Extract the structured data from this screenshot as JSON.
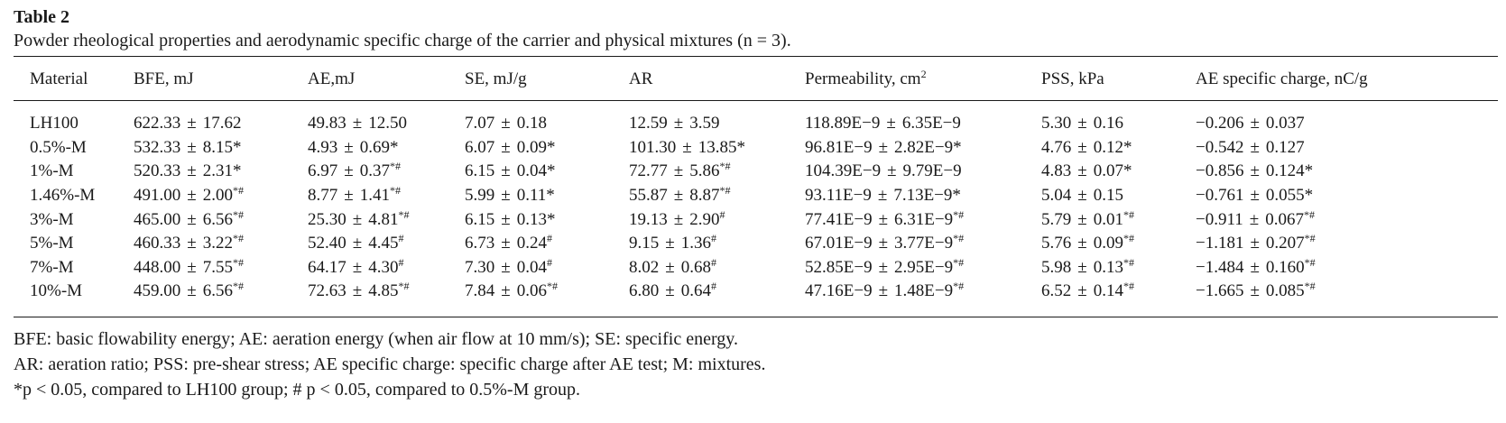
{
  "table_label": "Table 2",
  "caption": "Powder rheological properties and aerodynamic specific charge of the carrier and physical mixtures (n = 3).",
  "headers": [
    {
      "text": "Material",
      "sup": ""
    },
    {
      "text": "BFE, mJ",
      "sup": ""
    },
    {
      "text": "AE,mJ",
      "sup": ""
    },
    {
      "text": "SE, mJ/g",
      "sup": ""
    },
    {
      "text": "AR",
      "sup": ""
    },
    {
      "text": "Permeability, cm",
      "sup": "2"
    },
    {
      "text": "PSS, kPa",
      "sup": ""
    },
    {
      "text": "AE specific charge, nC/g",
      "sup": ""
    }
  ],
  "rows": [
    {
      "material": "LH100",
      "cells": [
        {
          "mean": "622.33",
          "sd": "17.62",
          "sig": ""
        },
        {
          "mean": "49.83",
          "sd": "12.50",
          "sig": ""
        },
        {
          "mean": "7.07",
          "sd": "0.18",
          "sig": ""
        },
        {
          "mean": "12.59",
          "sd": "3.59",
          "sig": ""
        },
        {
          "mean": "118.89E−9",
          "sd": "6.35E−9",
          "sig": ""
        },
        {
          "mean": "5.30",
          "sd": "0.16",
          "sig": ""
        },
        {
          "mean": "−0.206",
          "sd": "0.037",
          "sig": ""
        }
      ]
    },
    {
      "material": "0.5%-M",
      "cells": [
        {
          "mean": "532.33",
          "sd": "8.15*",
          "sig": ""
        },
        {
          "mean": "4.93",
          "sd": "0.69*",
          "sig": ""
        },
        {
          "mean": "6.07",
          "sd": "0.09*",
          "sig": ""
        },
        {
          "mean": "101.30",
          "sd": "13.85*",
          "sig": ""
        },
        {
          "mean": "96.81E−9",
          "sd": "2.82E−9*",
          "sig": ""
        },
        {
          "mean": "4.76",
          "sd": "0.12*",
          "sig": ""
        },
        {
          "mean": "−0.542",
          "sd": "0.127",
          "sig": ""
        }
      ]
    },
    {
      "material": "1%-M",
      "cells": [
        {
          "mean": "520.33",
          "sd": "2.31*",
          "sig": ""
        },
        {
          "mean": "6.97",
          "sd": "0.37",
          "sig": "*#"
        },
        {
          "mean": "6.15",
          "sd": "0.04*",
          "sig": ""
        },
        {
          "mean": "72.77",
          "sd": "5.86",
          "sig": "*#"
        },
        {
          "mean": "104.39E−9",
          "sd": "9.79E−9",
          "sig": ""
        },
        {
          "mean": "4.83",
          "sd": "0.07*",
          "sig": ""
        },
        {
          "mean": "−0.856",
          "sd": "0.124*",
          "sig": ""
        }
      ]
    },
    {
      "material": "1.46%-M",
      "cells": [
        {
          "mean": "491.00",
          "sd": "2.00",
          "sig": "*#"
        },
        {
          "mean": "8.77",
          "sd": "1.41",
          "sig": "*#"
        },
        {
          "mean": "5.99",
          "sd": "0.11*",
          "sig": ""
        },
        {
          "mean": "55.87",
          "sd": "8.87",
          "sig": "*#"
        },
        {
          "mean": "93.11E−9",
          "sd": "7.13E−9*",
          "sig": ""
        },
        {
          "mean": "5.04",
          "sd": "0.15",
          "sig": ""
        },
        {
          "mean": "−0.761",
          "sd": "0.055*",
          "sig": ""
        }
      ]
    },
    {
      "material": "3%-M",
      "cells": [
        {
          "mean": "465.00",
          "sd": "6.56",
          "sig": "*#"
        },
        {
          "mean": "25.30",
          "sd": "4.81",
          "sig": "*#"
        },
        {
          "mean": "6.15",
          "sd": "0.13*",
          "sig": ""
        },
        {
          "mean": "19.13",
          "sd": "2.90",
          "sig": "#"
        },
        {
          "mean": "77.41E−9",
          "sd": "6.31E−9",
          "sig": "*#"
        },
        {
          "mean": "5.79",
          "sd": "0.01",
          "sig": "*#"
        },
        {
          "mean": "−0.911",
          "sd": "0.067",
          "sig": "*#"
        }
      ]
    },
    {
      "material": "5%-M",
      "cells": [
        {
          "mean": "460.33",
          "sd": "3.22",
          "sig": "*#"
        },
        {
          "mean": "52.40",
          "sd": "4.45",
          "sig": "#"
        },
        {
          "mean": "6.73",
          "sd": "0.24",
          "sig": "#"
        },
        {
          "mean": "9.15",
          "sd": "1.36",
          "sig": "#"
        },
        {
          "mean": "67.01E−9",
          "sd": "3.77E−9",
          "sig": "*#"
        },
        {
          "mean": "5.76",
          "sd": "0.09",
          "sig": "*#"
        },
        {
          "mean": "−1.181",
          "sd": "0.207",
          "sig": "*#"
        }
      ]
    },
    {
      "material": "7%-M",
      "cells": [
        {
          "mean": "448.00",
          "sd": "7.55",
          "sig": "*#"
        },
        {
          "mean": "64.17",
          "sd": "4.30",
          "sig": "#"
        },
        {
          "mean": "7.30",
          "sd": "0.04",
          "sig": "#"
        },
        {
          "mean": "8.02",
          "sd": "0.68",
          "sig": "#"
        },
        {
          "mean": "52.85E−9",
          "sd": "2.95E−9",
          "sig": "*#"
        },
        {
          "mean": "5.98",
          "sd": "0.13",
          "sig": "*#"
        },
        {
          "mean": "−1.484",
          "sd": "0.160",
          "sig": "*#"
        }
      ]
    },
    {
      "material": "10%-M",
      "cells": [
        {
          "mean": "459.00",
          "sd": "6.56",
          "sig": "*#"
        },
        {
          "mean": "72.63",
          "sd": "4.85",
          "sig": "*#"
        },
        {
          "mean": "7.84",
          "sd": "0.06",
          "sig": "*#"
        },
        {
          "mean": "6.80",
          "sd": "0.64",
          "sig": "#"
        },
        {
          "mean": "47.16E−9",
          "sd": "1.48E−9",
          "sig": "*#"
        },
        {
          "mean": "6.52",
          "sd": "0.14",
          "sig": "*#"
        },
        {
          "mean": "−1.665",
          "sd": "0.085",
          "sig": "*#"
        }
      ]
    }
  ],
  "pm_symbol": "±",
  "notes": [
    "BFE: basic flowability energy; AE: aeration energy (when air flow at 10 mm/s); SE: specific energy.",
    "AR: aeration ratio; PSS: pre-shear stress; AE specific charge: specific charge after AE test; M: mixtures.",
    "*p < 0.05, compared to LH100 group; # p < 0.05, compared to 0.5%-M group."
  ]
}
